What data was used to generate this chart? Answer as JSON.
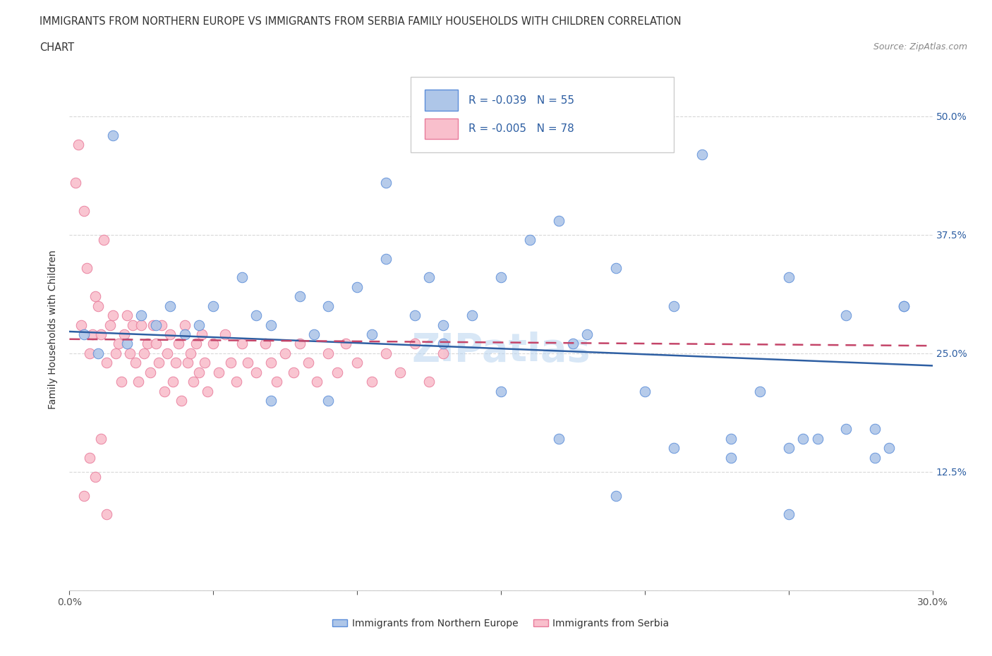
{
  "title_line1": "IMMIGRANTS FROM NORTHERN EUROPE VS IMMIGRANTS FROM SERBIA FAMILY HOUSEHOLDS WITH CHILDREN CORRELATION",
  "title_line2": "CHART",
  "source": "Source: ZipAtlas.com",
  "ylabel": "Family Households with Children",
  "xlim": [
    0.0,
    0.3
  ],
  "ylim": [
    0.0,
    0.55
  ],
  "blue_R": "-0.039",
  "blue_N": "55",
  "pink_R": "-0.005",
  "pink_N": "78",
  "blue_color": "#aec6e8",
  "pink_color": "#f9bfcc",
  "blue_edge_color": "#5b8dd9",
  "pink_edge_color": "#e87a9a",
  "blue_line_color": "#2e5fa3",
  "pink_line_color": "#c44569",
  "grid_color": "#d8d8d8",
  "legend_label_blue": "Immigrants from Northern Europe",
  "legend_label_pink": "Immigrants from Serbia",
  "blue_trend_x0": 0.0,
  "blue_trend_y0": 0.273,
  "blue_trend_x1": 0.3,
  "blue_trend_y1": 0.237,
  "pink_trend_x0": 0.0,
  "pink_trend_y0": 0.265,
  "pink_trend_x1": 0.3,
  "pink_trend_y1": 0.258,
  "blue_x": [
    0.005,
    0.01,
    0.015,
    0.02,
    0.025,
    0.03,
    0.035,
    0.04,
    0.045,
    0.05,
    0.06,
    0.065,
    0.07,
    0.08,
    0.085,
    0.09,
    0.1,
    0.105,
    0.11,
    0.12,
    0.125,
    0.13,
    0.14,
    0.15,
    0.16,
    0.17,
    0.175,
    0.18,
    0.19,
    0.2,
    0.21,
    0.22,
    0.23,
    0.24,
    0.25,
    0.255,
    0.26,
    0.27,
    0.28,
    0.285,
    0.29,
    0.07,
    0.09,
    0.11,
    0.13,
    0.15,
    0.17,
    0.19,
    0.21,
    0.23,
    0.25,
    0.27,
    0.28,
    0.25,
    0.29
  ],
  "blue_y": [
    0.27,
    0.25,
    0.48,
    0.26,
    0.29,
    0.28,
    0.3,
    0.27,
    0.28,
    0.3,
    0.33,
    0.29,
    0.28,
    0.31,
    0.27,
    0.3,
    0.32,
    0.27,
    0.35,
    0.29,
    0.33,
    0.28,
    0.29,
    0.33,
    0.37,
    0.39,
    0.26,
    0.27,
    0.34,
    0.21,
    0.3,
    0.46,
    0.16,
    0.21,
    0.08,
    0.16,
    0.16,
    0.29,
    0.17,
    0.15,
    0.3,
    0.2,
    0.2,
    0.43,
    0.26,
    0.21,
    0.16,
    0.1,
    0.15,
    0.14,
    0.15,
    0.17,
    0.14,
    0.33,
    0.3
  ],
  "pink_x": [
    0.002,
    0.004,
    0.005,
    0.006,
    0.007,
    0.008,
    0.009,
    0.01,
    0.011,
    0.012,
    0.013,
    0.014,
    0.015,
    0.016,
    0.017,
    0.018,
    0.019,
    0.02,
    0.021,
    0.022,
    0.023,
    0.024,
    0.025,
    0.026,
    0.027,
    0.028,
    0.029,
    0.03,
    0.031,
    0.032,
    0.033,
    0.034,
    0.035,
    0.036,
    0.037,
    0.038,
    0.039,
    0.04,
    0.041,
    0.042,
    0.043,
    0.044,
    0.045,
    0.046,
    0.047,
    0.048,
    0.05,
    0.052,
    0.054,
    0.056,
    0.058,
    0.06,
    0.062,
    0.065,
    0.068,
    0.07,
    0.072,
    0.075,
    0.078,
    0.08,
    0.083,
    0.086,
    0.09,
    0.093,
    0.096,
    0.1,
    0.105,
    0.11,
    0.115,
    0.12,
    0.125,
    0.13,
    0.005,
    0.007,
    0.009,
    0.011,
    0.013,
    0.003
  ],
  "pink_y": [
    0.43,
    0.28,
    0.4,
    0.34,
    0.25,
    0.27,
    0.31,
    0.3,
    0.27,
    0.37,
    0.24,
    0.28,
    0.29,
    0.25,
    0.26,
    0.22,
    0.27,
    0.29,
    0.25,
    0.28,
    0.24,
    0.22,
    0.28,
    0.25,
    0.26,
    0.23,
    0.28,
    0.26,
    0.24,
    0.28,
    0.21,
    0.25,
    0.27,
    0.22,
    0.24,
    0.26,
    0.2,
    0.28,
    0.24,
    0.25,
    0.22,
    0.26,
    0.23,
    0.27,
    0.24,
    0.21,
    0.26,
    0.23,
    0.27,
    0.24,
    0.22,
    0.26,
    0.24,
    0.23,
    0.26,
    0.24,
    0.22,
    0.25,
    0.23,
    0.26,
    0.24,
    0.22,
    0.25,
    0.23,
    0.26,
    0.24,
    0.22,
    0.25,
    0.23,
    0.26,
    0.22,
    0.25,
    0.1,
    0.14,
    0.12,
    0.16,
    0.08,
    0.47
  ]
}
